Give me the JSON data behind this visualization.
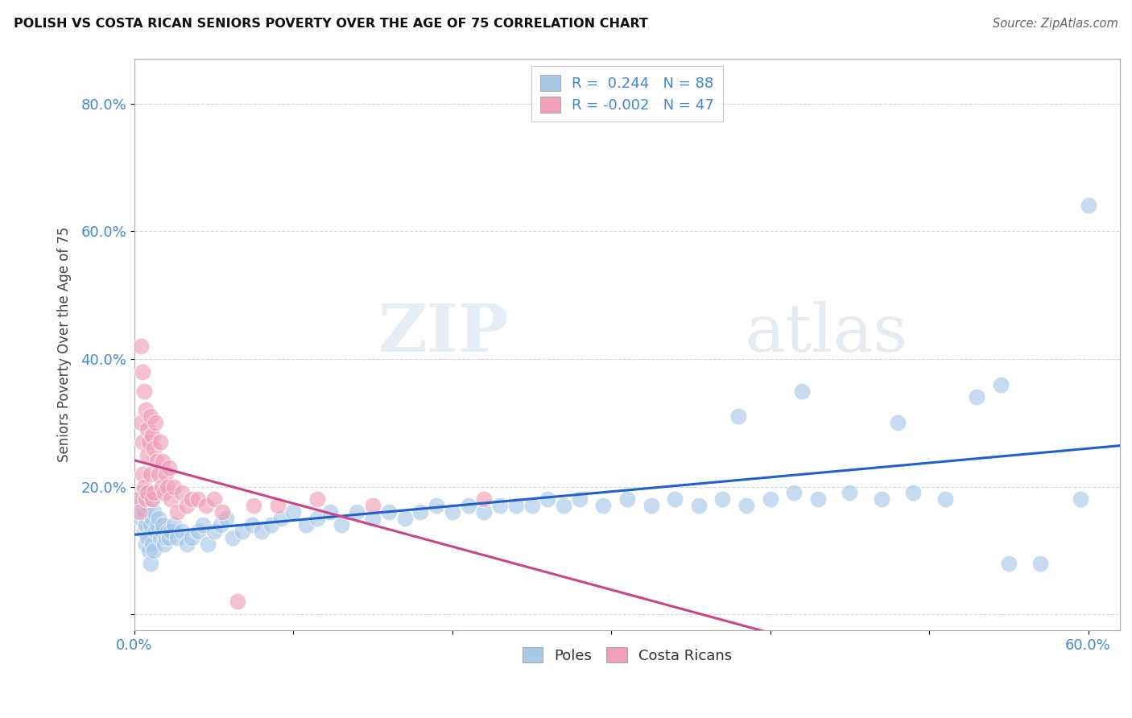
{
  "title": "POLISH VS COSTA RICAN SENIORS POVERTY OVER THE AGE OF 75 CORRELATION CHART",
  "source": "Source: ZipAtlas.com",
  "ylabel": "Seniors Poverty Over the Age of 75",
  "xlabel": "",
  "xlim": [
    0.0,
    0.62
  ],
  "ylim": [
    -0.025,
    0.87
  ],
  "xticks": [
    0.0,
    0.1,
    0.2,
    0.3,
    0.4,
    0.5,
    0.6
  ],
  "xticklabels": [
    "0.0%",
    "",
    "",
    "",
    "",
    "",
    "60.0%"
  ],
  "yticks": [
    0.0,
    0.2,
    0.4,
    0.6,
    0.8
  ],
  "yticklabels": [
    "",
    "20.0%",
    "40.0%",
    "60.0%",
    "80.0%"
  ],
  "poles_R": 0.244,
  "poles_N": 88,
  "cr_R": -0.002,
  "cr_N": 47,
  "blue_color": "#A8C8E8",
  "pink_color": "#F0A0B8",
  "trend_blue": "#2060CC",
  "trend_pink": "#CC4488",
  "watermark_zip": "ZIP",
  "watermark_atlas": "atlas",
  "legend_label1": "Poles",
  "legend_label2": "Costa Ricans",
  "poles_x": [
    0.003,
    0.004,
    0.005,
    0.006,
    0.006,
    0.007,
    0.007,
    0.008,
    0.008,
    0.009,
    0.01,
    0.01,
    0.01,
    0.011,
    0.011,
    0.012,
    0.012,
    0.013,
    0.014,
    0.015,
    0.016,
    0.017,
    0.018,
    0.019,
    0.02,
    0.021,
    0.022,
    0.023,
    0.025,
    0.027,
    0.03,
    0.033,
    0.036,
    0.04,
    0.043,
    0.046,
    0.05,
    0.054,
    0.058,
    0.062,
    0.068,
    0.074,
    0.08,
    0.086,
    0.092,
    0.1,
    0.108,
    0.115,
    0.123,
    0.13,
    0.14,
    0.15,
    0.16,
    0.17,
    0.18,
    0.19,
    0.2,
    0.21,
    0.22,
    0.23,
    0.24,
    0.25,
    0.26,
    0.27,
    0.28,
    0.295,
    0.31,
    0.325,
    0.34,
    0.355,
    0.37,
    0.385,
    0.4,
    0.415,
    0.43,
    0.45,
    0.47,
    0.49,
    0.51,
    0.53,
    0.55,
    0.57,
    0.595,
    0.6,
    0.545,
    0.42,
    0.38,
    0.48
  ],
  "poles_y": [
    0.17,
    0.15,
    0.19,
    0.13,
    0.16,
    0.11,
    0.14,
    0.12,
    0.17,
    0.1,
    0.18,
    0.14,
    0.08,
    0.15,
    0.11,
    0.16,
    0.1,
    0.13,
    0.14,
    0.15,
    0.12,
    0.13,
    0.14,
    0.11,
    0.12,
    0.13,
    0.12,
    0.13,
    0.14,
    0.12,
    0.13,
    0.11,
    0.12,
    0.13,
    0.14,
    0.11,
    0.13,
    0.14,
    0.15,
    0.12,
    0.13,
    0.14,
    0.13,
    0.14,
    0.15,
    0.16,
    0.14,
    0.15,
    0.16,
    0.14,
    0.16,
    0.15,
    0.16,
    0.15,
    0.16,
    0.17,
    0.16,
    0.17,
    0.16,
    0.17,
    0.17,
    0.17,
    0.18,
    0.17,
    0.18,
    0.17,
    0.18,
    0.17,
    0.18,
    0.17,
    0.18,
    0.17,
    0.18,
    0.19,
    0.18,
    0.19,
    0.18,
    0.19,
    0.18,
    0.34,
    0.08,
    0.08,
    0.18,
    0.64,
    0.36,
    0.35,
    0.31,
    0.3
  ],
  "cr_x": [
    0.002,
    0.003,
    0.004,
    0.004,
    0.005,
    0.005,
    0.005,
    0.006,
    0.006,
    0.007,
    0.007,
    0.008,
    0.008,
    0.008,
    0.009,
    0.01,
    0.01,
    0.011,
    0.011,
    0.012,
    0.012,
    0.013,
    0.014,
    0.015,
    0.016,
    0.017,
    0.018,
    0.019,
    0.02,
    0.021,
    0.022,
    0.023,
    0.025,
    0.027,
    0.03,
    0.033,
    0.036,
    0.04,
    0.045,
    0.05,
    0.055,
    0.065,
    0.075,
    0.09,
    0.115,
    0.15,
    0.22
  ],
  "cr_y": [
    0.18,
    0.16,
    0.42,
    0.3,
    0.38,
    0.27,
    0.22,
    0.35,
    0.2,
    0.32,
    0.18,
    0.29,
    0.25,
    0.19,
    0.27,
    0.31,
    0.22,
    0.28,
    0.18,
    0.26,
    0.19,
    0.3,
    0.24,
    0.22,
    0.27,
    0.2,
    0.24,
    0.19,
    0.22,
    0.2,
    0.23,
    0.18,
    0.2,
    0.16,
    0.19,
    0.17,
    0.18,
    0.18,
    0.17,
    0.18,
    0.16,
    0.02,
    0.17,
    0.17,
    0.18,
    0.17,
    0.18
  ]
}
